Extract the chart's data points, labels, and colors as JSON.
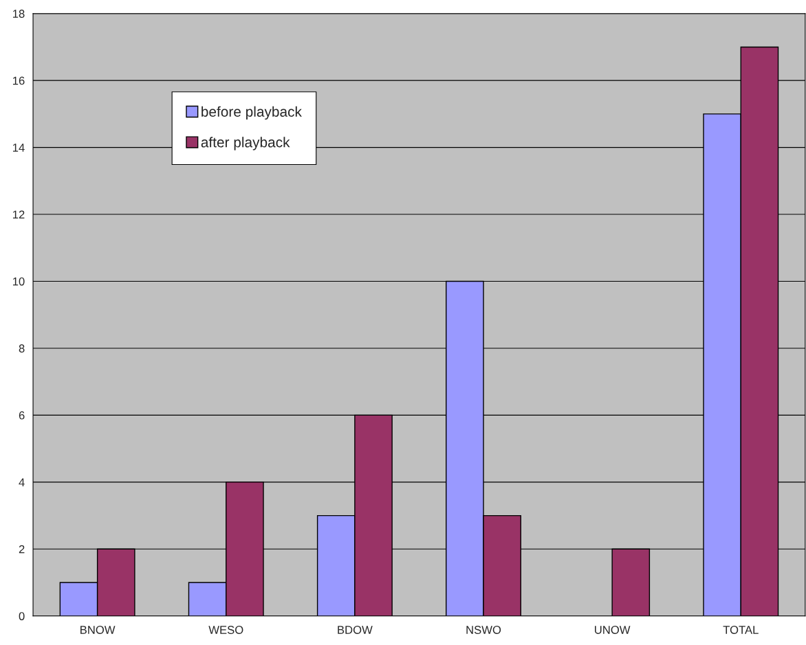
{
  "chart_data": {
    "type": "bar",
    "categories": [
      "BNOW",
      "WESO",
      "BDOW",
      "NSWO",
      "UNOW",
      "TOTAL"
    ],
    "series": [
      {
        "name": "before playback",
        "color": "#9999ff",
        "values": [
          1,
          1,
          3,
          10,
          0,
          15
        ]
      },
      {
        "name": "after playback",
        "color": "#993366",
        "values": [
          2,
          4,
          6,
          3,
          2,
          17
        ]
      }
    ],
    "ylim": [
      0,
      18
    ],
    "yticks": [
      0,
      2,
      4,
      6,
      8,
      10,
      12,
      14,
      16,
      18
    ],
    "grid": "y",
    "legend": "top left"
  }
}
